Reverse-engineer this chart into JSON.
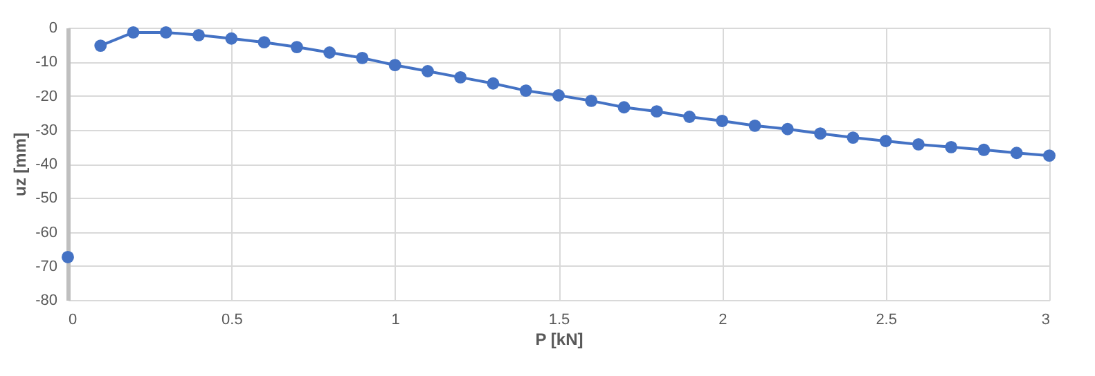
{
  "chart_data": {
    "type": "line",
    "xlabel": "P [kN]",
    "ylabel": "uz [mm]",
    "xlim": [
      0,
      3
    ],
    "xticks": [
      0,
      0.5,
      1,
      1.5,
      2,
      2.5,
      3
    ],
    "ylim": [
      -80,
      0
    ],
    "yticks": [
      -80,
      -70,
      -60,
      -50,
      -40,
      -30,
      -20,
      -10,
      0
    ],
    "grid": true,
    "marker": "circle",
    "line_style": "solid",
    "series": [
      {
        "type": "scatter",
        "color": "#4472c4",
        "x": [
          0
        ],
        "values": [
          -67.4
        ]
      },
      {
        "color": "#4472c4",
        "x": [
          0.1,
          0.2,
          0.3,
          0.4,
          0.5,
          0.6,
          0.7,
          0.8,
          0.9,
          1.0,
          1.1,
          1.2,
          1.3,
          1.4,
          1.5,
          1.6,
          1.7,
          1.8,
          1.9,
          2.0,
          2.1,
          2.2,
          2.3,
          2.4,
          2.5,
          2.6,
          2.7,
          2.8,
          2.9,
          3.0
        ],
        "values": [
          -5.3,
          -1.4,
          -1.4,
          -2.2,
          -3.2,
          -4.3,
          -5.7,
          -7.3,
          -8.9,
          -11.0,
          -12.8,
          -14.6,
          -16.4,
          -18.5,
          -19.9,
          -21.5,
          -23.4,
          -24.6,
          -26.2,
          -27.4,
          -28.8,
          -29.8,
          -31.1,
          -32.3,
          -33.3,
          -34.3,
          -35.1,
          -35.9,
          -36.8,
          -37.6
        ]
      }
    ]
  }
}
